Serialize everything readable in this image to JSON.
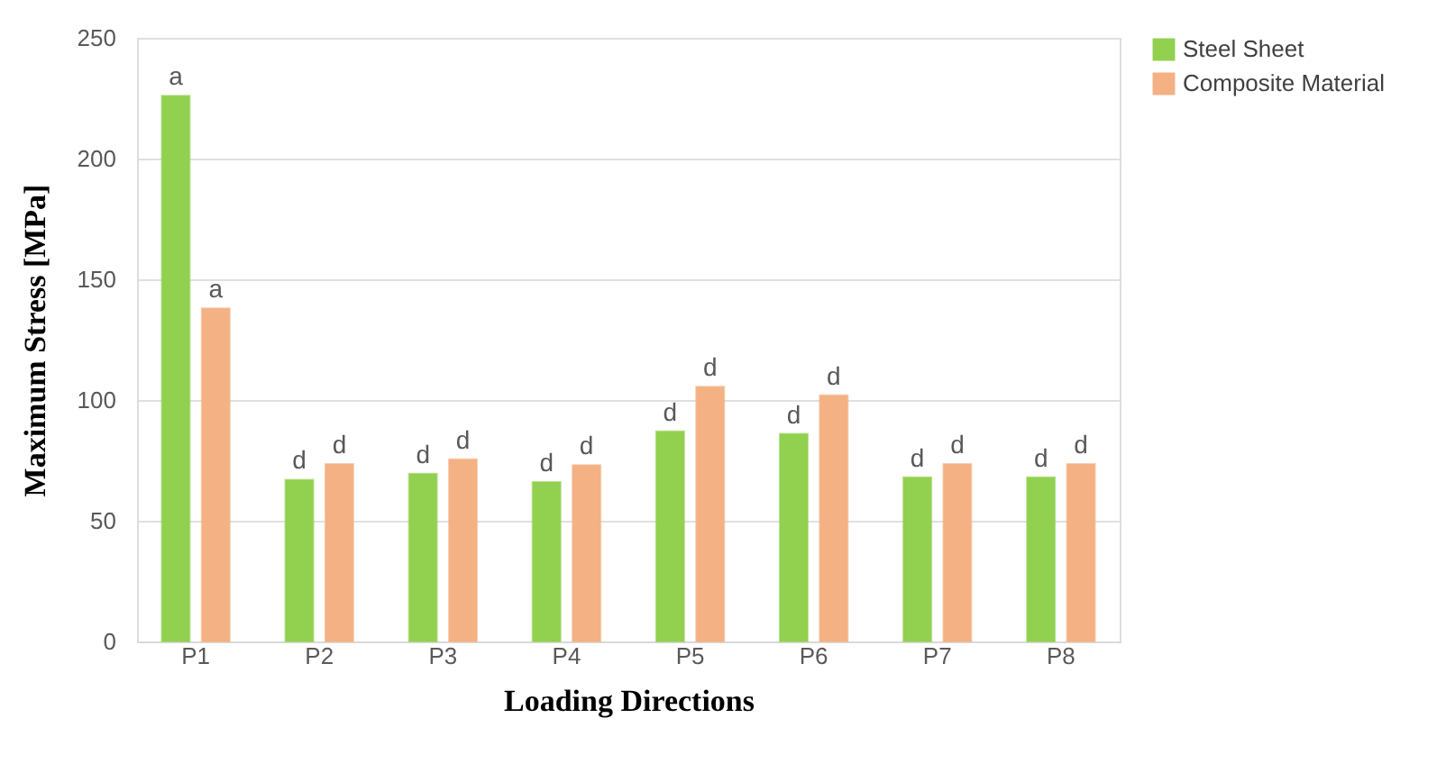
{
  "chart_data": {
    "type": "bar",
    "xlabel": "Loading Directions",
    "ylabel": "Maximum Stress [MPa]",
    "categories": [
      "P1",
      "P2",
      "P3",
      "P4",
      "P5",
      "P6",
      "P7",
      "P8"
    ],
    "series": [
      {
        "name": "Steel Sheet",
        "color": "#92d050",
        "values": [
          226,
          67,
          69.5,
          66,
          87,
          86,
          68,
          68
        ],
        "value_labels": [
          "a",
          "d",
          "d",
          "d",
          "d",
          "d",
          "d",
          "d"
        ]
      },
      {
        "name": "Composite Material",
        "color": "#f4b183",
        "values": [
          138,
          73.5,
          75.5,
          73,
          105.5,
          102,
          73.5,
          73.5
        ],
        "value_labels": [
          "a",
          "d",
          "d",
          "d",
          "d",
          "d",
          "d",
          "d"
        ]
      }
    ],
    "ylim": [
      0,
      250
    ],
    "yticks": [
      0,
      50,
      100,
      150,
      200,
      250
    ],
    "grid": "y",
    "legend": "right"
  }
}
